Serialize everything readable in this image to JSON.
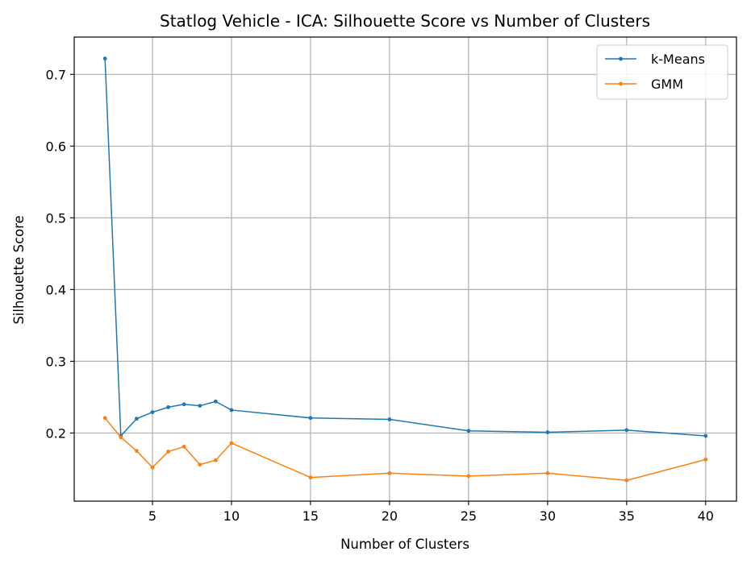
{
  "chart_data": {
    "type": "line",
    "title": "Statlog Vehicle - ICA: Silhouette Score vs Number of Clusters",
    "xlabel": "Number of Clusters",
    "ylabel": "Silhouette Score",
    "xlim": [
      0.05,
      41.95
    ],
    "ylim": [
      0.105,
      0.752
    ],
    "xticks": [
      5,
      10,
      15,
      20,
      25,
      30,
      35,
      40
    ],
    "yticks": [
      0.2,
      0.3,
      0.4,
      0.5,
      0.6,
      0.7
    ],
    "grid": true,
    "legend_position": "top-right",
    "x": [
      2,
      3,
      4,
      5,
      6,
      7,
      8,
      9,
      10,
      15,
      20,
      25,
      30,
      35,
      40
    ],
    "series": [
      {
        "name": "k-Means",
        "color": "#1f77b4",
        "values": [
          0.722,
          0.196,
          0.22,
          0.229,
          0.236,
          0.24,
          0.238,
          0.244,
          0.232,
          0.221,
          0.219,
          0.203,
          0.201,
          0.204,
          0.196
        ]
      },
      {
        "name": "GMM",
        "color": "#ff7f0e",
        "values": [
          0.221,
          0.194,
          0.175,
          0.152,
          0.174,
          0.181,
          0.156,
          0.162,
          0.186,
          0.138,
          0.144,
          0.14,
          0.144,
          0.134,
          0.163
        ]
      }
    ]
  }
}
